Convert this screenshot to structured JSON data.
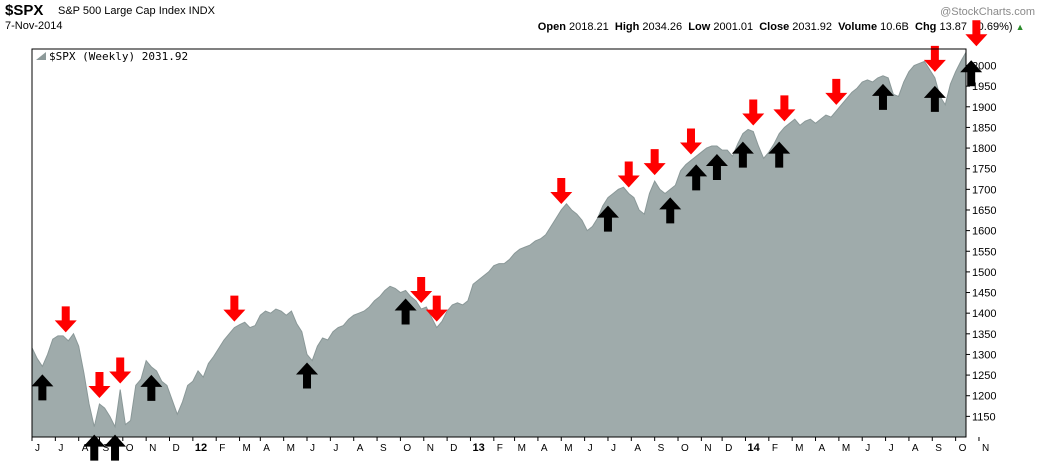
{
  "header": {
    "symbol": "$SPX",
    "name": "S&P 500 Large Cap Index INDX",
    "date": "7-Nov-2014",
    "brand": "@StockCharts.com",
    "open_label": "Open",
    "open": "2018.21",
    "high_label": "High",
    "high": "2034.26",
    "low_label": "Low",
    "low": "2001.01",
    "close_label": "Close",
    "close": "2031.92",
    "volume_label": "Volume",
    "volume": "10.6B",
    "chg_label": "Chg",
    "chg": "13.87",
    "chg_pct": "(0.69%)"
  },
  "legend": {
    "text": "$SPX (Weekly) 2031.92"
  },
  "colors": {
    "area_fill": "#9fabab",
    "area_line": "#8a9898",
    "up_arrow": "#000000",
    "down_arrow": "#ff0000",
    "plot_border": "#000000",
    "gridline": "#bbbbbb"
  },
  "chart_data": {
    "type": "area",
    "title": "$SPX (Weekly)",
    "xlabel": "",
    "ylabel": "",
    "ylim": [
      1100,
      2040
    ],
    "y_ticks": [
      1150,
      1200,
      1250,
      1300,
      1350,
      1400,
      1450,
      1500,
      1550,
      1600,
      1650,
      1700,
      1750,
      1800,
      1850,
      1900,
      1950,
      2000
    ],
    "x_tick_labels": [
      "J",
      "J",
      "A",
      "S",
      "O",
      "N",
      "D",
      "12",
      "F",
      "M",
      "A",
      "M",
      "J",
      "J",
      "A",
      "S",
      "O",
      "N",
      "D",
      "13",
      "F",
      "M",
      "A",
      "M",
      "J",
      "J",
      "A",
      "S",
      "O",
      "N",
      "D",
      "14",
      "F",
      "M",
      "A",
      "M",
      "J",
      "J",
      "A",
      "S",
      "O",
      "N"
    ],
    "x_tick_index": [
      0,
      4.5,
      9,
      13,
      17.5,
      22,
      26.5,
      31,
      35.5,
      40,
      44,
      48.5,
      53,
      57.5,
      62,
      66.5,
      71,
      75.5,
      80,
      84.5,
      89,
      93,
      97.5,
      102,
      106.5,
      111,
      115.5,
      120,
      124.5,
      129,
      133,
      137.5,
      142,
      146.5,
      151,
      155.5,
      160,
      164.5,
      169,
      173.5,
      178,
      182.5
    ],
    "series": [
      {
        "values": [
          1316,
          1290,
          1271,
          1300,
          1337,
          1345,
          1345,
          1333,
          1350,
          1320,
          1255,
          1180,
          1125,
          1180,
          1170,
          1150,
          1125,
          1215,
          1130,
          1140,
          1225,
          1240,
          1285,
          1270,
          1260,
          1235,
          1225,
          1190,
          1155,
          1185,
          1225,
          1235,
          1260,
          1245,
          1278,
          1295,
          1315,
          1335,
          1350,
          1365,
          1372,
          1378,
          1365,
          1370,
          1395,
          1405,
          1400,
          1410,
          1405,
          1395,
          1405,
          1375,
          1355,
          1300,
          1285,
          1320,
          1340,
          1335,
          1355,
          1365,
          1370,
          1385,
          1395,
          1400,
          1405,
          1415,
          1430,
          1440,
          1455,
          1465,
          1460,
          1450,
          1455,
          1440,
          1430,
          1410,
          1415,
          1390,
          1365,
          1380,
          1405,
          1420,
          1425,
          1420,
          1430,
          1470,
          1480,
          1490,
          1500,
          1515,
          1520,
          1520,
          1530,
          1545,
          1555,
          1560,
          1565,
          1575,
          1580,
          1590,
          1610,
          1630,
          1650,
          1665,
          1650,
          1640,
          1625,
          1600,
          1610,
          1630,
          1660,
          1680,
          1690,
          1700,
          1705,
          1690,
          1680,
          1650,
          1640,
          1690,
          1720,
          1700,
          1690,
          1700,
          1710,
          1745,
          1760,
          1770,
          1780,
          1790,
          1800,
          1805,
          1805,
          1795,
          1795,
          1780,
          1810,
          1835,
          1845,
          1840,
          1805,
          1775,
          1790,
          1810,
          1835,
          1850,
          1860,
          1870,
          1855,
          1865,
          1870,
          1860,
          1870,
          1880,
          1875,
          1890,
          1905,
          1920,
          1935,
          1945,
          1960,
          1965,
          1960,
          1970,
          1975,
          1970,
          1930,
          1925,
          1960,
          1985,
          2000,
          2005,
          2010,
          1990,
          1970,
          1925,
          1905,
          1955,
          1985,
          2010,
          2032
        ]
      }
    ],
    "annotations": {
      "down_arrows_at_index": [
        6.5,
        13,
        17,
        39,
        78,
        75,
        102,
        115,
        120,
        127,
        139,
        145,
        155,
        174,
        182
      ],
      "up_arrows_at_index": [
        2,
        12,
        16,
        23,
        53,
        72,
        111,
        123,
        128,
        132,
        137,
        144,
        164,
        174,
        181
      ]
    }
  }
}
